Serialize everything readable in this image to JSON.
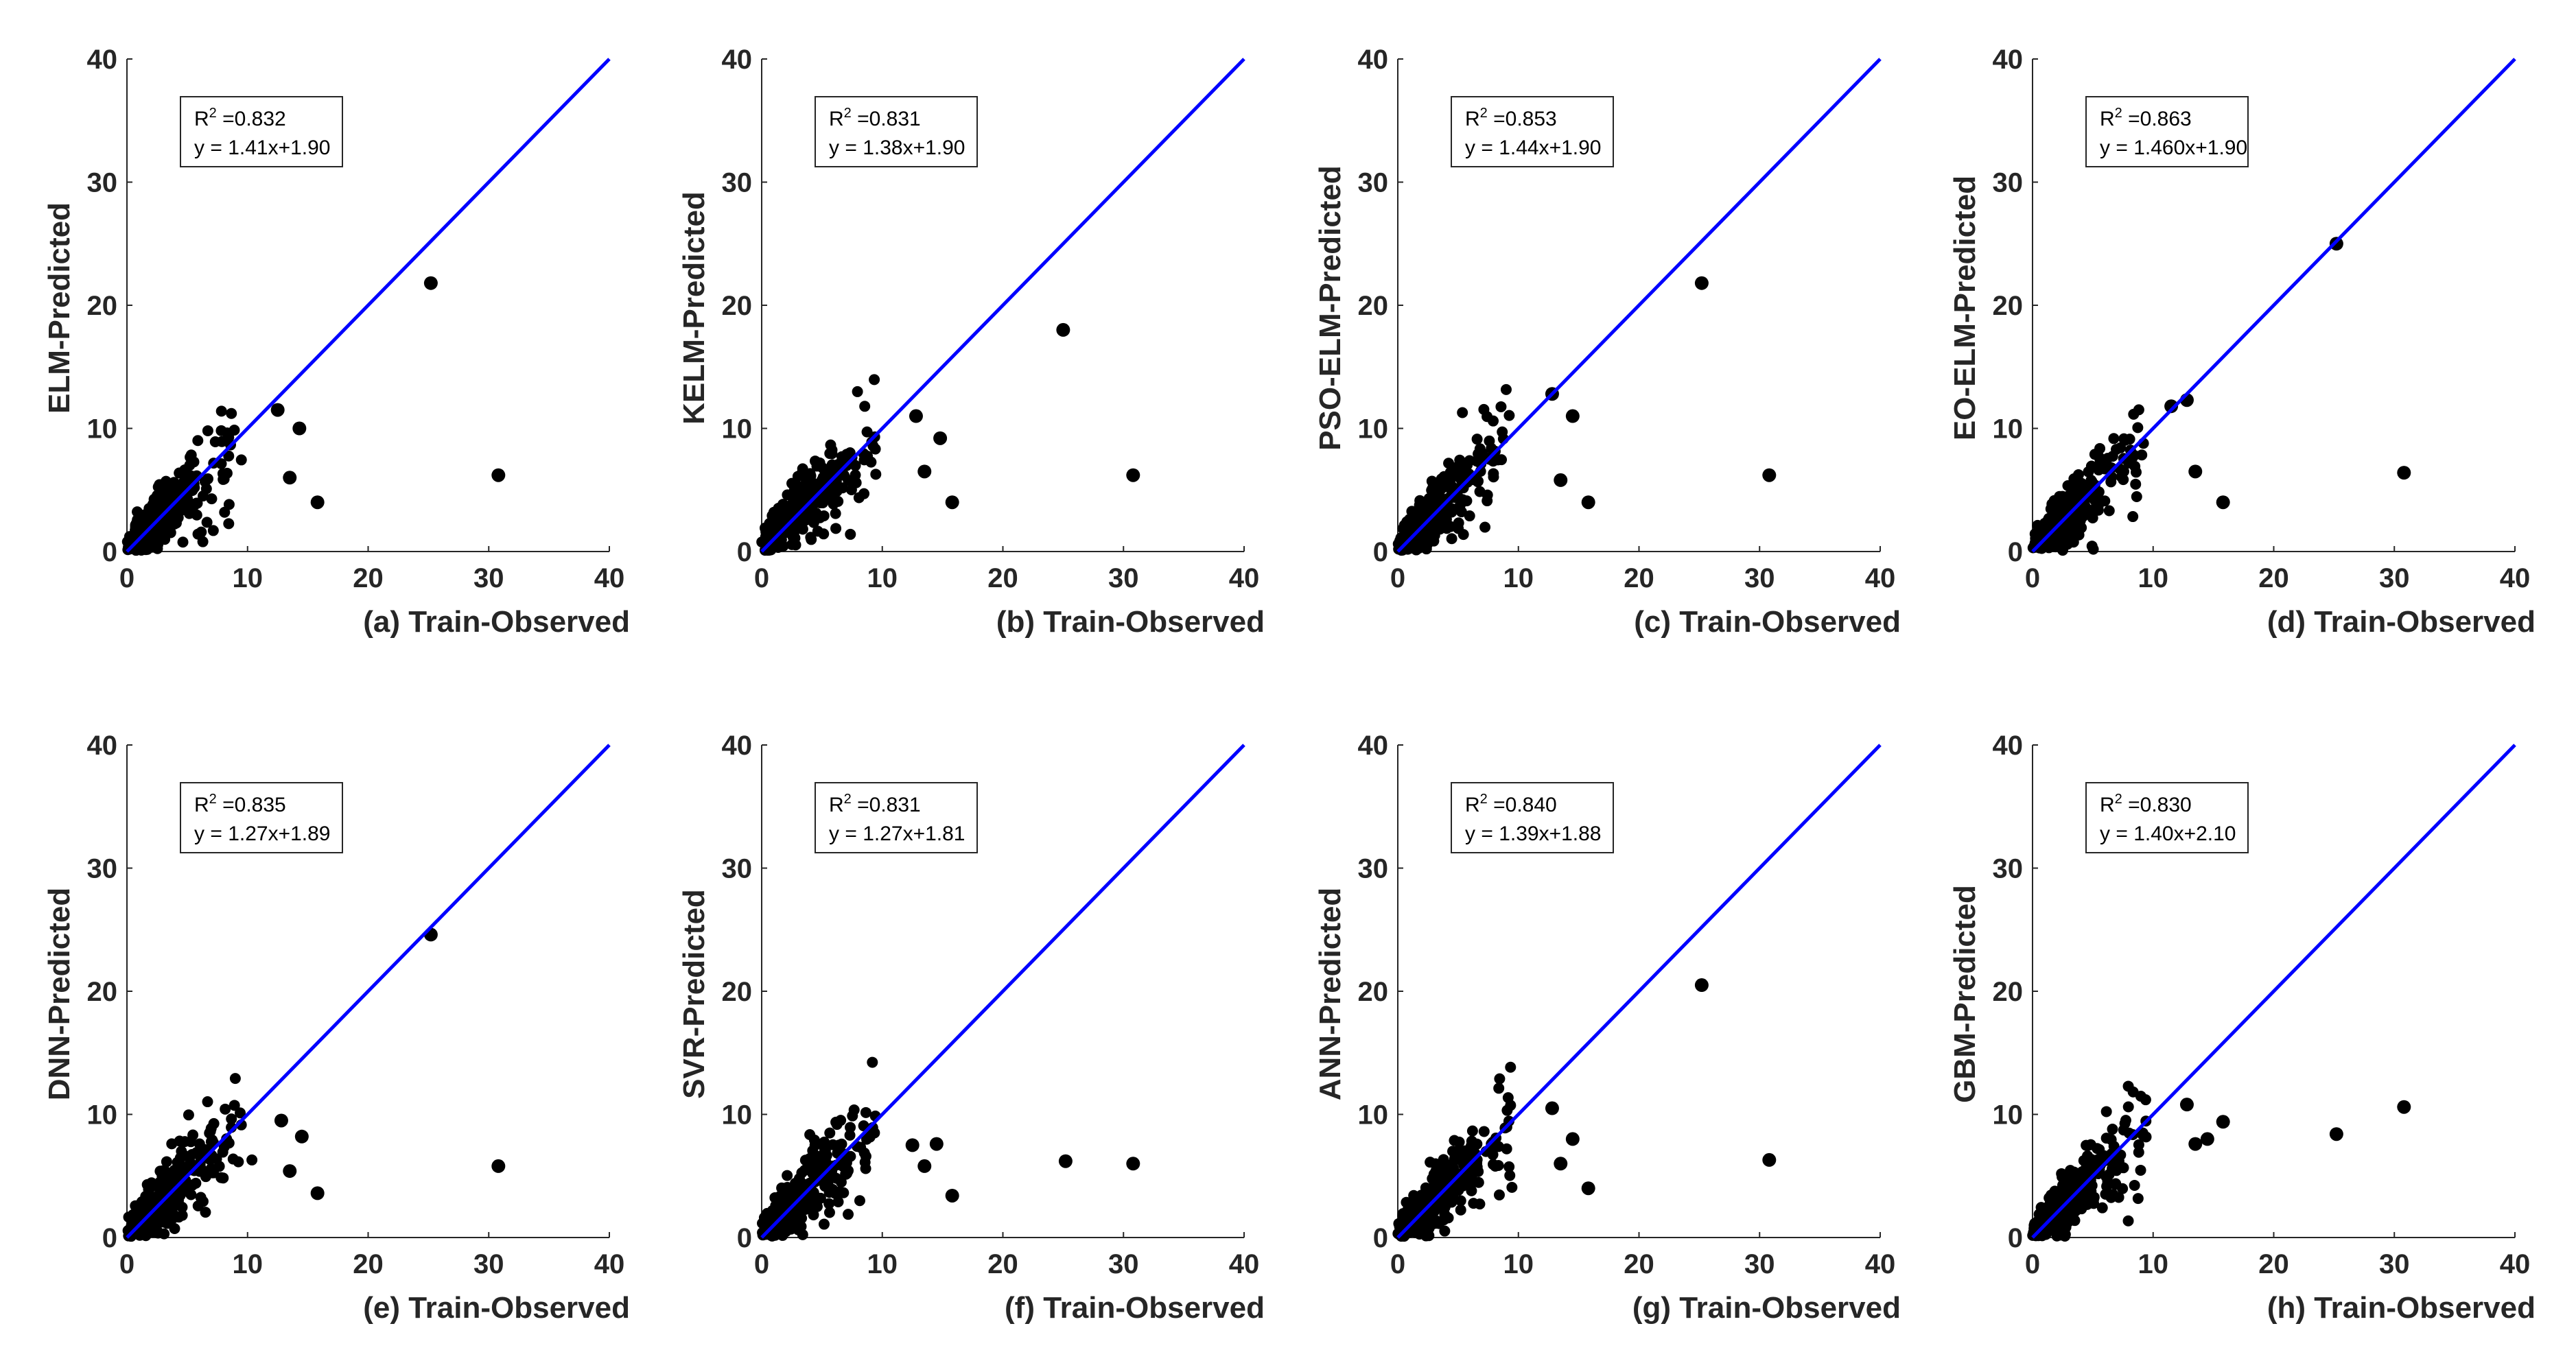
{
  "chart_data": [
    {
      "type": "scatter",
      "panel": "a",
      "xlabel": "(a) Train-Observed",
      "ylabel": "ELM-Predicted",
      "xlim": [
        0,
        40
      ],
      "ylim": [
        0,
        40
      ],
      "ticks": [
        0,
        10,
        20,
        30,
        40
      ],
      "r2_label": "R",
      "r2_sup": "2",
      "r2_value": " =0.832",
      "equation": "y = 1.41x+1.90",
      "fit": {
        "slope": 1.41,
        "intercept": 1.9
      },
      "series_color": "#0000ff",
      "point_color": "#000000",
      "outliers": [
        [
          25.2,
          21.8
        ],
        [
          30.8,
          6.2
        ],
        [
          15.8,
          4.0
        ],
        [
          13.5,
          6.0
        ],
        [
          14.3,
          10.0
        ],
        [
          12.5,
          11.5
        ]
      ]
    },
    {
      "type": "scatter",
      "panel": "b",
      "xlabel": "(b) Train-Observed",
      "ylabel": "KELM-Predicted",
      "xlim": [
        0,
        40
      ],
      "ylim": [
        0,
        40
      ],
      "ticks": [
        0,
        10,
        20,
        30,
        40
      ],
      "r2_label": "R",
      "r2_sup": "2",
      "r2_value": " =0.831",
      "equation": "y = 1.38x+1.90",
      "fit": {
        "slope": 1.38,
        "intercept": 1.9
      },
      "series_color": "#0000ff",
      "point_color": "#000000",
      "outliers": [
        [
          25.0,
          18.0
        ],
        [
          30.8,
          6.2
        ],
        [
          15.8,
          4.0
        ],
        [
          13.5,
          6.5
        ],
        [
          14.8,
          9.2
        ],
        [
          12.8,
          11.0
        ]
      ]
    },
    {
      "type": "scatter",
      "panel": "c",
      "xlabel": "(c) Train-Observed",
      "ylabel": "PSO-ELM-Predicted",
      "xlim": [
        0,
        40
      ],
      "ylim": [
        0,
        40
      ],
      "ticks": [
        0,
        10,
        20,
        30,
        40
      ],
      "r2_label": "R",
      "r2_sup": "2",
      "r2_value": " =0.853",
      "equation": "y = 1.44x+1.90",
      "fit": {
        "slope": 1.44,
        "intercept": 1.9
      },
      "series_color": "#0000ff",
      "point_color": "#000000",
      "outliers": [
        [
          25.2,
          21.8
        ],
        [
          30.8,
          6.2
        ],
        [
          15.8,
          4.0
        ],
        [
          13.5,
          5.8
        ],
        [
          14.5,
          11.0
        ],
        [
          12.8,
          12.8
        ]
      ]
    },
    {
      "type": "scatter",
      "panel": "d",
      "xlabel": "(d) Train-Observed",
      "ylabel": "EO-ELM-Predicted",
      "xlim": [
        0,
        40
      ],
      "ylim": [
        0,
        40
      ],
      "ticks": [
        0,
        10,
        20,
        30,
        40
      ],
      "r2_label": "R",
      "r2_sup": "2",
      "r2_value": " =0.863",
      "equation": "y = 1.460x+1.90",
      "fit": {
        "slope": 1.46,
        "intercept": 1.9
      },
      "series_color": "#0000ff",
      "point_color": "#000000",
      "outliers": [
        [
          25.2,
          25.0
        ],
        [
          30.8,
          6.4
        ],
        [
          15.8,
          4.0
        ],
        [
          13.5,
          6.5
        ],
        [
          12.8,
          12.3
        ],
        [
          11.5,
          11.8
        ]
      ]
    },
    {
      "type": "scatter",
      "panel": "e",
      "xlabel": "(e) Train-Observed",
      "ylabel": "DNN-Predicted",
      "xlim": [
        0,
        40
      ],
      "ylim": [
        0,
        40
      ],
      "ticks": [
        0,
        10,
        20,
        30,
        40
      ],
      "r2_label": "R",
      "r2_sup": "2",
      "r2_value": " =0.835",
      "equation": "y = 1.27x+1.89",
      "fit": {
        "slope": 1.27,
        "intercept": 1.89
      },
      "series_color": "#0000ff",
      "point_color": "#000000",
      "outliers": [
        [
          25.2,
          24.6
        ],
        [
          30.8,
          5.8
        ],
        [
          15.8,
          3.6
        ],
        [
          13.5,
          5.4
        ],
        [
          14.5,
          8.2
        ],
        [
          12.8,
          9.5
        ]
      ]
    },
    {
      "type": "scatter",
      "panel": "f",
      "xlabel": "(f) Train-Observed",
      "ylabel": "SVR-Predicted",
      "xlim": [
        0,
        40
      ],
      "ylim": [
        0,
        40
      ],
      "ticks": [
        0,
        10,
        20,
        30,
        40
      ],
      "r2_label": "R",
      "r2_sup": "2",
      "r2_value": " =0.831",
      "equation": "y = 1.27x+1.81",
      "fit": {
        "slope": 1.27,
        "intercept": 1.81
      },
      "series_color": "#0000ff",
      "point_color": "#000000",
      "outliers": [
        [
          25.2,
          6.2
        ],
        [
          30.8,
          6.0
        ],
        [
          15.8,
          3.4
        ],
        [
          13.5,
          5.8
        ],
        [
          14.5,
          7.6
        ],
        [
          12.5,
          7.5
        ]
      ]
    },
    {
      "type": "scatter",
      "panel": "g",
      "xlabel": "(g) Train-Observed",
      "ylabel": "ANN-Predicted",
      "xlim": [
        0,
        40
      ],
      "ylim": [
        0,
        40
      ],
      "ticks": [
        0,
        10,
        20,
        30,
        40
      ],
      "r2_label": "R",
      "r2_sup": "2",
      "r2_value": " =0.840",
      "equation": "y = 1.39x+1.88",
      "fit": {
        "slope": 1.39,
        "intercept": 1.88
      },
      "series_color": "#0000ff",
      "point_color": "#000000",
      "outliers": [
        [
          25.2,
          20.5
        ],
        [
          30.8,
          6.3
        ],
        [
          15.8,
          4.0
        ],
        [
          13.5,
          6.0
        ],
        [
          14.5,
          8.0
        ],
        [
          12.8,
          10.5
        ]
      ]
    },
    {
      "type": "scatter",
      "panel": "h",
      "xlabel": "(h) Train-Observed",
      "ylabel": "GBM-Predicted",
      "xlim": [
        0,
        40
      ],
      "ylim": [
        0,
        40
      ],
      "ticks": [
        0,
        10,
        20,
        30,
        40
      ],
      "r2_label": "R",
      "r2_sup": "2",
      "r2_value": " =0.830",
      "equation": "y = 1.40x+2.10",
      "fit": {
        "slope": 1.4,
        "intercept": 2.1
      },
      "series_color": "#0000ff",
      "point_color": "#000000",
      "outliers": [
        [
          25.2,
          8.4
        ],
        [
          30.8,
          10.6
        ],
        [
          15.8,
          9.4
        ],
        [
          13.5,
          7.6
        ],
        [
          14.5,
          8.0
        ],
        [
          12.8,
          10.8
        ]
      ]
    }
  ]
}
